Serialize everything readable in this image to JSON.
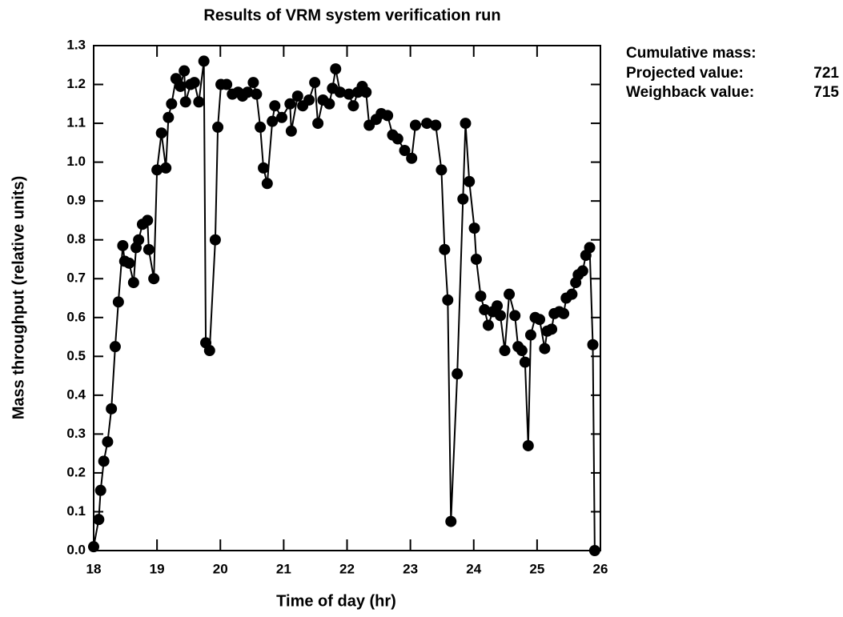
{
  "chart_data": {
    "type": "line",
    "title": "Results of VRM system verification run",
    "x_label": "Time of day (hr)",
    "y_label": "Mass throughput (relative units)",
    "annotations": [
      "Cumulative mass:",
      "Projected value:",
      "721",
      "Weighback value:",
      "715"
    ],
    "xlim": [
      18,
      26
    ],
    "ylim": [
      0,
      1.3
    ],
    "xticks": [
      18,
      19,
      20,
      21,
      22,
      23,
      24,
      25,
      26
    ],
    "yticks": [
      {
        "value": 0,
        "label": "0.0"
      },
      0.1,
      0.2,
      0.3,
      0.4,
      0.5,
      0.6,
      0.7,
      0.8,
      0.9,
      {
        "value": 1,
        "label": "1.0"
      },
      1.1,
      1.2,
      1.3
    ],
    "grid": false,
    "series": [
      {
        "name": "Mass throughput",
        "color": "#000000",
        "x": [
          18.0,
          18.08,
          18.11,
          18.16,
          18.22,
          18.28,
          18.34,
          18.39,
          18.46,
          18.49,
          18.56,
          18.63,
          18.67,
          18.71,
          18.77,
          18.85,
          18.87,
          18.95,
          19.0,
          19.07,
          19.14,
          19.18,
          19.23,
          19.3,
          19.37,
          19.43,
          19.45,
          19.53,
          19.59,
          19.66,
          19.74,
          19.77,
          19.83,
          19.92,
          19.96,
          20.01,
          20.1,
          20.19,
          20.28,
          20.35,
          20.43,
          20.52,
          20.57,
          20.63,
          20.68,
          20.74,
          20.82,
          20.86,
          20.97,
          21.1,
          21.12,
          21.22,
          21.3,
          21.4,
          21.49,
          21.54,
          21.62,
          21.72,
          21.77,
          21.82,
          21.89,
          22.03,
          22.1,
          22.17,
          22.24,
          22.3,
          22.35,
          22.46,
          22.54,
          22.64,
          22.72,
          22.8,
          22.91,
          23.02,
          23.08,
          23.26,
          23.4,
          23.49,
          23.54,
          23.59,
          23.64,
          23.74,
          23.83,
          23.87,
          23.93,
          24.01,
          24.04,
          24.11,
          24.17,
          24.23,
          24.3,
          24.37,
          24.42,
          24.49,
          24.56,
          24.65,
          24.7,
          24.76,
          24.81,
          24.86,
          24.9,
          24.97,
          25.04,
          25.12,
          25.16,
          25.23,
          25.27,
          25.35,
          25.42,
          25.46,
          25.55,
          25.61,
          25.65,
          25.72,
          25.77,
          25.83,
          25.88,
          25.91
        ],
        "values": [
          0.01,
          0.08,
          0.155,
          0.23,
          0.28,
          0.365,
          0.525,
          0.64,
          0.785,
          0.745,
          0.74,
          0.69,
          0.78,
          0.8,
          0.84,
          0.85,
          0.775,
          0.7,
          0.98,
          1.075,
          0.985,
          1.115,
          1.15,
          1.215,
          1.195,
          1.235,
          1.155,
          1.2,
          1.205,
          1.155,
          1.26,
          0.535,
          0.515,
          0.8,
          1.09,
          1.2,
          1.2,
          1.175,
          1.18,
          1.17,
          1.18,
          1.205,
          1.175,
          1.09,
          0.985,
          0.945,
          1.105,
          1.145,
          1.115,
          1.15,
          1.08,
          1.17,
          1.145,
          1.16,
          1.205,
          1.1,
          1.16,
          1.15,
          1.19,
          1.24,
          1.18,
          1.175,
          1.145,
          1.18,
          1.195,
          1.18,
          1.095,
          1.11,
          1.125,
          1.12,
          1.07,
          1.06,
          1.03,
          1.01,
          1.095,
          1.1,
          1.095,
          0.98,
          0.775,
          0.645,
          0.075,
          0.455,
          0.905,
          1.1,
          0.95,
          0.83,
          0.75,
          0.655,
          0.62,
          0.58,
          0.615,
          0.63,
          0.605,
          0.515,
          0.66,
          0.605,
          0.525,
          0.515,
          0.485,
          0.27,
          0.555,
          0.6,
          0.595,
          0.52,
          0.565,
          0.57,
          0.61,
          0.615,
          0.61,
          0.65,
          0.66,
          0.69,
          0.71,
          0.72,
          0.76,
          0.78,
          0.53,
          0.0
        ]
      }
    ]
  }
}
